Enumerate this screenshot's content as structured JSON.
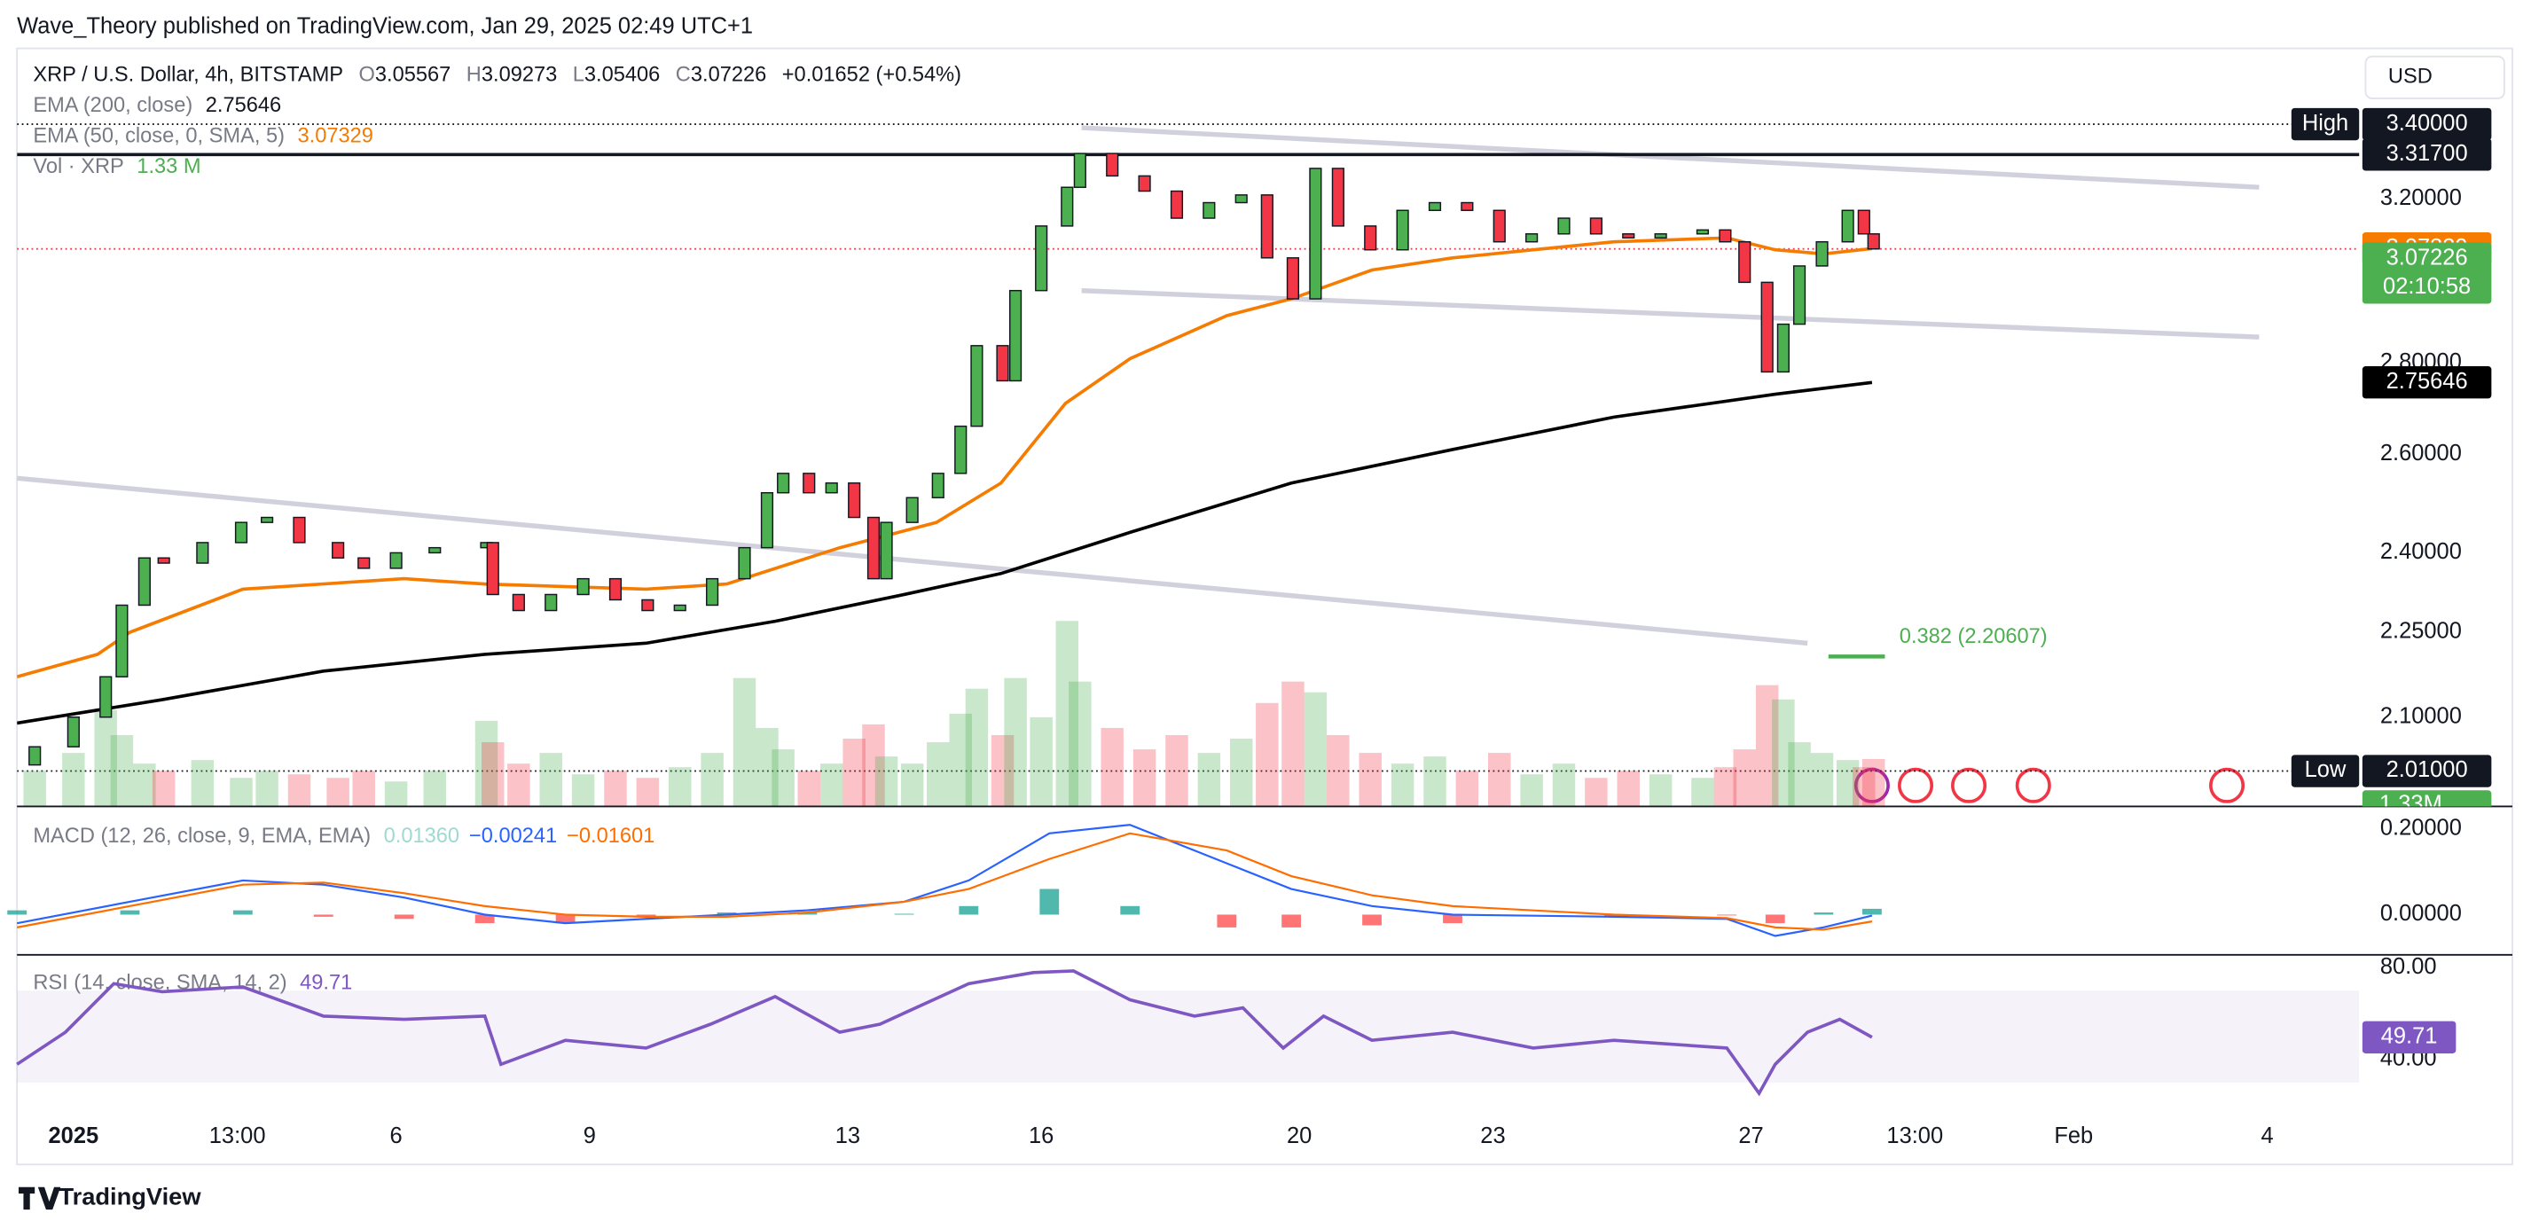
{
  "header": {
    "publisher": "Wave_Theory published on TradingView.com, Jan 29, 2025 02:49 UTC+1",
    "currency_button": "USD",
    "brand": "TradingView"
  },
  "chart_data": {
    "type": "candlestick",
    "symbol": "XRP / U.S. Dollar, 4h, BITSTAMP",
    "ohlc_legend": [
      {
        "label": "O",
        "value": 3.05567
      },
      {
        "label": "H",
        "value": 3.09273
      },
      {
        "label": "L",
        "value": 3.05406
      },
      {
        "label": "C"
      }
    ],
    "change": "+0.01652 (+0.54%)",
    "log_scale": true,
    "grid": false,
    "xlim": [
      -0.875,
      35.425
    ],
    "xticks": [
      {
        "value": 0,
        "label": "2025"
      },
      {
        "value": 2.54,
        "label": "13:00"
      },
      {
        "value": 5,
        "label": "6"
      },
      {
        "value": 8,
        "label": "9"
      },
      {
        "value": 12,
        "label": "13"
      },
      {
        "value": 15,
        "label": "16"
      },
      {
        "value": 19,
        "label": "20"
      },
      {
        "value": 22,
        "label": "23"
      },
      {
        "value": 26,
        "label": "27"
      },
      {
        "value": 28.54,
        "label": "13:00"
      },
      {
        "value": 31,
        "label": "Feb"
      },
      {
        "value": 34,
        "label": "4"
      }
    ],
    "ylim": [
      1.953,
      3.616
    ],
    "yticks": [
      {
        "value": 2.1,
        "label": "2.10000"
      },
      {
        "value": 2.25,
        "label": "2.25000"
      },
      {
        "value": 2.4,
        "label": "2.40000"
      },
      {
        "value": 2.6,
        "label": "2.60000"
      },
      {
        "value": 2.8,
        "label": "2.80000"
      },
      {
        "value": 3.2,
        "label": "3.20000"
      }
    ],
    "up_color": "#4caf50",
    "down_color": "#f23645",
    "candles": {
      "x": [
        -0.6,
        0,
        0.5,
        0.75,
        1.1,
        1.4,
        2.0,
        2.6,
        3.0,
        3.5,
        4.1,
        4.5,
        5.0,
        5.6,
        6.4,
        6.5,
        6.9,
        7.4,
        7.9,
        8.4,
        8.9,
        9.4,
        9.9,
        10.4,
        10.75,
        11.0,
        11.4,
        11.75,
        12.1,
        12.4,
        12.6,
        13.0,
        13.4,
        13.75,
        14.0,
        14.4,
        14.6,
        15.0,
        15.4,
        15.6,
        16.1,
        16.6,
        17.1,
        17.6,
        18.1,
        18.5,
        18.9,
        19.25,
        19.6,
        20.1,
        20.6,
        21.1,
        21.6,
        22.1,
        22.6,
        23.1,
        23.6,
        24.1,
        24.6,
        25.25,
        25.6,
        25.9,
        26.25,
        26.5,
        26.75,
        27.1,
        27.5,
        27.75,
        27.9
      ],
      "open": [
        2.02,
        2.05,
        2.1,
        2.17,
        2.3,
        2.39,
        2.38,
        2.42,
        2.46,
        2.47,
        2.42,
        2.39,
        2.37,
        2.4,
        2.41,
        2.42,
        2.32,
        2.29,
        2.32,
        2.35,
        2.31,
        2.29,
        2.3,
        2.35,
        2.41,
        2.52,
        2.56,
        2.52,
        2.54,
        2.47,
        2.35,
        2.46,
        2.51,
        2.56,
        2.66,
        2.84,
        2.76,
        2.97,
        3.13,
        3.23,
        3.32,
        3.26,
        3.22,
        3.15,
        3.19,
        3.21,
        3.05,
        2.95,
        3.28,
        3.13,
        3.07,
        3.17,
        3.19,
        3.17,
        3.09,
        3.11,
        3.15,
        3.11,
        3.1,
        3.11,
        3.12,
        3.09,
        2.99,
        2.78,
        2.89,
        3.03,
        3.09,
        3.17,
        3.11
      ],
      "close": [
        2.05,
        2.1,
        2.17,
        2.3,
        2.39,
        2.38,
        2.42,
        2.46,
        2.47,
        2.42,
        2.39,
        2.37,
        2.4,
        2.41,
        2.42,
        2.32,
        2.29,
        2.32,
        2.35,
        2.31,
        2.29,
        2.3,
        2.35,
        2.41,
        2.52,
        2.56,
        2.52,
        2.54,
        2.47,
        2.35,
        2.46,
        2.51,
        2.56,
        2.66,
        2.84,
        2.76,
        2.97,
        3.13,
        3.23,
        3.32,
        3.26,
        3.22,
        3.15,
        3.19,
        3.21,
        3.05,
        2.95,
        3.28,
        3.13,
        3.07,
        3.17,
        3.19,
        3.17,
        3.09,
        3.11,
        3.15,
        3.11,
        3.1,
        3.11,
        3.12,
        3.09,
        2.99,
        2.78,
        2.89,
        3.03,
        3.09,
        3.17,
        3.11,
        3.07226
      ]
    },
    "series": [
      {
        "name": "EMA (200, close)",
        "color": "#000000",
        "x": [
          -0.875,
          1.375,
          3.875,
          6.375,
          8.875,
          10.875,
          12.875,
          14.375,
          16.375,
          18.875,
          21.375,
          23.875,
          26.375,
          27.875
        ],
        "values": [
          2.09,
          2.13,
          2.18,
          2.21,
          2.23,
          2.27,
          2.32,
          2.36,
          2.44,
          2.54,
          2.61,
          2.68,
          2.73,
          2.75646
        ]
      },
      {
        "name": "EMA (50, close, 0, SMA, 5)",
        "color": "#f57c00",
        "x": [
          -0.875,
          0.375,
          0.875,
          2.625,
          5.125,
          6.375,
          8.875,
          10.125,
          11.875,
          13.375,
          14.375,
          15.375,
          16.375,
          17.875,
          18.875,
          20.125,
          21.375,
          22.625,
          23.875,
          25.625,
          26.375,
          27.125,
          27.875
        ],
        "values": [
          2.17,
          2.21,
          2.25,
          2.33,
          2.35,
          2.34,
          2.33,
          2.34,
          2.41,
          2.46,
          2.54,
          2.71,
          2.81,
          2.91,
          2.95,
          3.02,
          3.05,
          3.07,
          3.09,
          3.1,
          3.07,
          3.06,
          3.07329
        ]
      }
    ],
    "trendline_color": "#d1d1dd",
    "trendlines": [
      {
        "x": [
          15.625,
          33.875
        ],
        "values": [
          3.39,
          3.23
        ]
      },
      {
        "x": [
          15.625,
          33.875
        ],
        "values": [
          2.97,
          2.86
        ]
      },
      {
        "x": [
          -0.875,
          26.875
        ],
        "values": [
          2.55,
          2.23
        ]
      }
    ],
    "levels": [
      {
        "label": "High",
        "value": 3.4,
        "value_label": "3.40000",
        "style": "dotted"
      },
      {
        "value": 3.317,
        "value_label": "3.31700",
        "style": "solid"
      },
      {
        "label": "Low",
        "value": 2.01,
        "value_label": "2.01000",
        "style": "dotted"
      }
    ],
    "fib": {
      "label": "0.382 (2.20607)",
      "value": 2.20607,
      "x": [
        27.2,
        28.075
      ],
      "color": "#4caf50"
    },
    "last_price": {
      "countdown": "02:10:58",
      "color": "#4caf50",
      "line_color": "#f23645"
    },
    "volume": {
      "name": "Vol · XRP",
      "value_label": "1.33 M",
      "axis_label": "1.33M",
      "values": [
        1.0,
        1.5,
        2.7,
        2.0,
        1.2,
        1.0,
        1.3,
        0.8,
        1.0,
        0.9,
        0.8,
        1.0,
        0.7,
        1.0,
        2.4,
        1.8,
        1.2,
        1.5,
        0.9,
        1.0,
        0.8,
        1.1,
        1.5,
        3.6,
        2.2,
        1.6,
        1.0,
        1.2,
        1.9,
        2.3,
        1.4,
        1.2,
        1.8,
        2.6,
        3.3,
        2.0,
        3.6,
        2.5,
        5.2,
        3.5,
        2.2,
        1.6,
        2.0,
        1.5,
        1.9,
        2.9,
        3.5,
        3.2,
        2.0,
        1.5,
        1.2,
        1.4,
        1.0,
        1.5,
        0.9,
        1.2,
        0.8,
        1.0,
        0.9,
        0.8,
        1.1,
        1.6,
        3.4,
        3.0,
        1.8,
        1.5,
        1.3,
        1.1,
        1.33
      ]
    },
    "macd": {
      "title": "MACD (12, 26, close, 9, EMA, EMA)",
      "ylim": [
        -0.094,
        0.253
      ],
      "yticks": [
        {
          "value": 0.2,
          "label": "0.20000"
        },
        {
          "value": 0,
          "label": "0.00000"
        }
      ],
      "x": [
        -0.875,
        0.875,
        2.625,
        3.875,
        5.125,
        6.375,
        7.625,
        8.875,
        10.125,
        11.375,
        12.875,
        13.875,
        15.125,
        16.375,
        17.875,
        18.875,
        20.125,
        21.375,
        23.875,
        25.625,
        26.375,
        27.125,
        27.875
      ],
      "histogram": {
        "values": [
          0.01,
          0.01,
          0.01,
          -0.005,
          -0.01,
          -0.02,
          -0.02,
          -0.005,
          0.005,
          0.005,
          0.002,
          0.02,
          0.06,
          0.02,
          -0.03,
          -0.03,
          -0.025,
          -0.02,
          -0.005,
          -0.002,
          -0.02,
          0.005,
          0.0136
        ],
        "value_label": "0.01360",
        "up_color": "#26a69a",
        "down_color": "#ff5252",
        "legend_color": "#9fd9d2"
      },
      "macd_line": {
        "values": [
          -0.02,
          0.03,
          0.08,
          0.07,
          0.04,
          0.0,
          -0.02,
          -0.01,
          0.0,
          0.01,
          0.03,
          0.08,
          0.19,
          0.21,
          0.12,
          0.06,
          0.02,
          0.0,
          -0.005,
          -0.01,
          -0.05,
          -0.03,
          -0.00241
        ],
        "value_label": "−0.00241",
        "color": "#2962ff"
      },
      "signal_line": {
        "values": [
          -0.03,
          0.02,
          0.07,
          0.075,
          0.05,
          0.02,
          0.0,
          -0.005,
          -0.005,
          0.005,
          0.03,
          0.06,
          0.13,
          0.19,
          0.15,
          0.09,
          0.045,
          0.02,
          0.0,
          -0.008,
          -0.03,
          -0.035,
          -0.01601
        ],
        "value_label": "−0.01601",
        "color": "#ff6d00"
      }
    },
    "rsi": {
      "title": "RSI (14, close, SMA, 14, 2)",
      "ylim": [
        16.8,
        85.6
      ],
      "yticks": [
        {
          "value": 80,
          "label": "80.00"
        },
        {
          "value": 40,
          "label": "40.00"
        }
      ],
      "band": [
        30,
        70
      ],
      "color": "#7e57c2",
      "x": [
        -0.875,
        -0.125,
        0.625,
        1.375,
        2.625,
        3.875,
        5.125,
        6.375,
        6.625,
        7.625,
        8.875,
        9.875,
        10.875,
        11.875,
        12.5,
        13.875,
        14.875,
        15.5,
        16.375,
        17.375,
        18.125,
        18.75,
        19.375,
        20.125,
        21.375,
        22.625,
        23.875,
        25.625,
        26.125,
        26.375,
        26.875,
        27.375,
        27.875
      ],
      "values": [
        37.9,
        51.9,
        73,
        69.5,
        71.6,
        58.9,
        57.5,
        58.9,
        37.9,
        48.4,
        45,
        55.4,
        67.4,
        51.9,
        55.4,
        73,
        77.9,
        78.6,
        66,
        58.9,
        62.5,
        45,
        58.9,
        48.4,
        51.9,
        45,
        48.4,
        45,
        25.3,
        37.9,
        51.9,
        57.5,
        49.71
      ]
    }
  }
}
